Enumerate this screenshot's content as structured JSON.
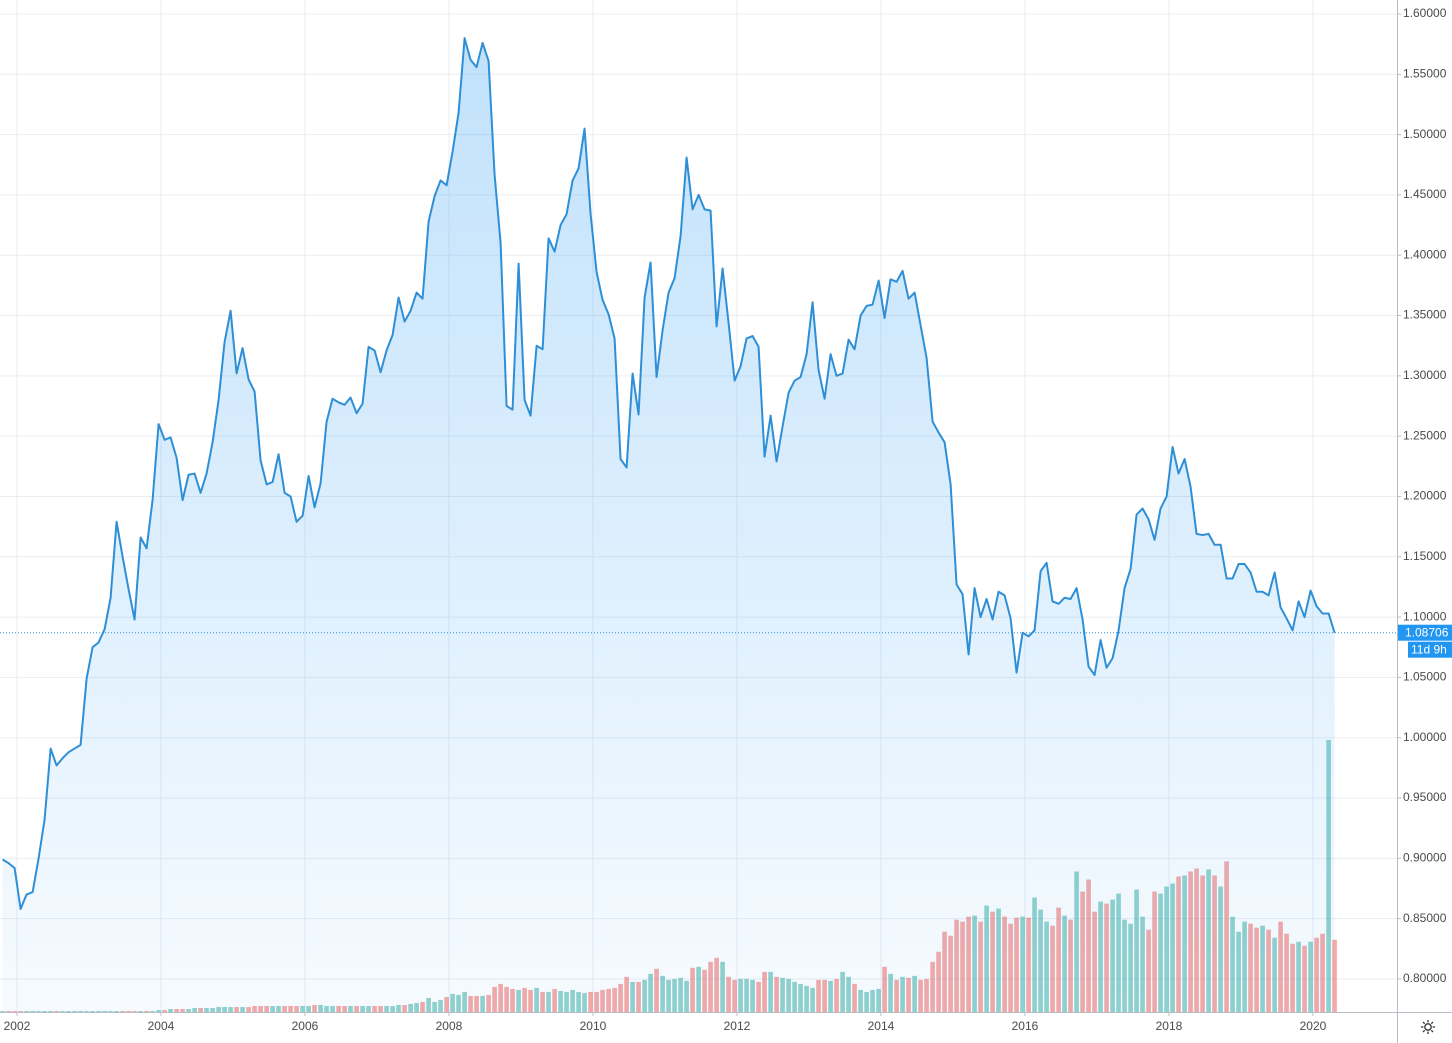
{
  "chart_data": {
    "type": "area",
    "xlim": [
      2001.764,
      2021.167
    ],
    "ylim": [
      0.7726,
      1.6116
    ],
    "xticks": [
      2002,
      2004,
      2006,
      2008,
      2010,
      2012,
      2014,
      2016,
      2018,
      2020
    ],
    "yticks": [
      {
        "value": 0.8,
        "label": "0.80000"
      },
      {
        "value": 0.85,
        "label": "0.85000"
      },
      {
        "value": 0.9,
        "label": "0.90000"
      },
      {
        "value": 0.95,
        "label": "0.95000"
      },
      {
        "value": 1.0,
        "label": "1.00000"
      },
      {
        "value": 1.05,
        "label": "1.05000"
      },
      {
        "value": 1.1,
        "label": "1.10000"
      },
      {
        "value": 1.15,
        "label": "1.15000"
      },
      {
        "value": 1.2,
        "label": "1.20000"
      },
      {
        "value": 1.25,
        "label": "1.25000"
      },
      {
        "value": 1.3,
        "label": "1.30000"
      },
      {
        "value": 1.35,
        "label": "1.35000"
      },
      {
        "value": 1.4,
        "label": "1.40000"
      },
      {
        "value": 1.45,
        "label": "1.45000"
      },
      {
        "value": 1.5,
        "label": "1.50000"
      },
      {
        "value": 1.55,
        "label": "1.55000"
      },
      {
        "value": 1.6,
        "label": "1.60000"
      }
    ],
    "grid": true,
    "countdown": "11d 9h",
    "x": [
      2001.8,
      2001.883,
      2001.967,
      2002.05,
      2002.133,
      2002.217,
      2002.3,
      2002.383,
      2002.467,
      2002.55,
      2002.633,
      2002.717,
      2002.8,
      2002.883,
      2002.967,
      2003.05,
      2003.133,
      2003.217,
      2003.3,
      2003.383,
      2003.467,
      2003.55,
      2003.633,
      2003.717,
      2003.8,
      2003.883,
      2003.967,
      2004.05,
      2004.133,
      2004.217,
      2004.3,
      2004.383,
      2004.467,
      2004.55,
      2004.633,
      2004.717,
      2004.8,
      2004.883,
      2004.967,
      2005.05,
      2005.133,
      2005.217,
      2005.3,
      2005.383,
      2005.467,
      2005.55,
      2005.633,
      2005.717,
      2005.8,
      2005.883,
      2005.967,
      2006.05,
      2006.133,
      2006.217,
      2006.3,
      2006.383,
      2006.467,
      2006.55,
      2006.633,
      2006.717,
      2006.8,
      2006.883,
      2006.967,
      2007.05,
      2007.133,
      2007.217,
      2007.3,
      2007.383,
      2007.467,
      2007.55,
      2007.633,
      2007.717,
      2007.8,
      2007.883,
      2007.967,
      2008.05,
      2008.133,
      2008.217,
      2008.3,
      2008.383,
      2008.467,
      2008.55,
      2008.633,
      2008.717,
      2008.8,
      2008.883,
      2008.967,
      2009.05,
      2009.133,
      2009.217,
      2009.3,
      2009.383,
      2009.467,
      2009.55,
      2009.633,
      2009.717,
      2009.8,
      2009.883,
      2009.967,
      2010.05,
      2010.133,
      2010.217,
      2010.3,
      2010.383,
      2010.467,
      2010.55,
      2010.633,
      2010.717,
      2010.8,
      2010.883,
      2010.967,
      2011.05,
      2011.133,
      2011.217,
      2011.3,
      2011.383,
      2011.467,
      2011.55,
      2011.633,
      2011.717,
      2011.8,
      2011.883,
      2011.967,
      2012.05,
      2012.133,
      2012.217,
      2012.3,
      2012.383,
      2012.467,
      2012.55,
      2012.633,
      2012.717,
      2012.8,
      2012.883,
      2012.967,
      2013.05,
      2013.133,
      2013.217,
      2013.3,
      2013.383,
      2013.467,
      2013.55,
      2013.633,
      2013.717,
      2013.8,
      2013.883,
      2013.967,
      2014.05,
      2014.133,
      2014.217,
      2014.3,
      2014.383,
      2014.467,
      2014.55,
      2014.633,
      2014.717,
      2014.8,
      2014.883,
      2014.967,
      2015.05,
      2015.133,
      2015.217,
      2015.3,
      2015.383,
      2015.467,
      2015.55,
      2015.633,
      2015.717,
      2015.8,
      2015.883,
      2015.967,
      2016.05,
      2016.133,
      2016.217,
      2016.3,
      2016.383,
      2016.467,
      2016.55,
      2016.633,
      2016.717,
      2016.8,
      2016.883,
      2016.967,
      2017.05,
      2017.133,
      2017.217,
      2017.3,
      2017.383,
      2017.467,
      2017.55,
      2017.633,
      2017.717,
      2017.8,
      2017.883,
      2017.967,
      2018.05,
      2018.133,
      2018.217,
      2018.3,
      2018.383,
      2018.467,
      2018.55,
      2018.633,
      2018.717,
      2018.8,
      2018.883,
      2018.967,
      2019.05,
      2019.133,
      2019.217,
      2019.3,
      2019.383,
      2019.467,
      2019.55,
      2019.633,
      2019.717,
      2019.8,
      2019.883,
      2019.967,
      2020.05,
      2020.133,
      2020.217,
      2020.3
    ],
    "series": [
      {
        "color": "#2e8fd6",
        "values": [
          0.899,
          0.896,
          0.892,
          0.858,
          0.87,
          0.872,
          0.9,
          0.932,
          0.991,
          0.977,
          0.983,
          0.988,
          0.991,
          0.994,
          1.049,
          1.075,
          1.079,
          1.09,
          1.116,
          1.179,
          1.15,
          1.123,
          1.098,
          1.166,
          1.157,
          1.197,
          1.26,
          1.247,
          1.249,
          1.232,
          1.197,
          1.218,
          1.219,
          1.203,
          1.219,
          1.245,
          1.28,
          1.328,
          1.354,
          1.302,
          1.323,
          1.297,
          1.287,
          1.23,
          1.21,
          1.212,
          1.235,
          1.203,
          1.2,
          1.179,
          1.184,
          1.217,
          1.191,
          1.211,
          1.262,
          1.281,
          1.278,
          1.276,
          1.282,
          1.269,
          1.277,
          1.324,
          1.321,
          1.303,
          1.321,
          1.334,
          1.365,
          1.345,
          1.354,
          1.369,
          1.364,
          1.428,
          1.449,
          1.462,
          1.458,
          1.486,
          1.518,
          1.58,
          1.562,
          1.556,
          1.576,
          1.561,
          1.467,
          1.41,
          1.275,
          1.272,
          1.393,
          1.28,
          1.267,
          1.325,
          1.322,
          1.414,
          1.403,
          1.425,
          1.434,
          1.462,
          1.472,
          1.505,
          1.434,
          1.386,
          1.363,
          1.351,
          1.331,
          1.231,
          1.224,
          1.302,
          1.268,
          1.365,
          1.394,
          1.299,
          1.338,
          1.369,
          1.381,
          1.416,
          1.481,
          1.438,
          1.45,
          1.438,
          1.437,
          1.341,
          1.389,
          1.344,
          1.296,
          1.308,
          1.331,
          1.333,
          1.324,
          1.233,
          1.267,
          1.229,
          1.258,
          1.286,
          1.296,
          1.299,
          1.318,
          1.361,
          1.305,
          1.281,
          1.318,
          1.3,
          1.302,
          1.33,
          1.322,
          1.35,
          1.358,
          1.359,
          1.379,
          1.348,
          1.38,
          1.378,
          1.387,
          1.364,
          1.369,
          1.342,
          1.315,
          1.262,
          1.253,
          1.245,
          1.21,
          1.127,
          1.119,
          1.069,
          1.124,
          1.1,
          1.115,
          1.098,
          1.121,
          1.118,
          1.099,
          1.054,
          1.087,
          1.084,
          1.089,
          1.138,
          1.145,
          1.113,
          1.111,
          1.116,
          1.115,
          1.124,
          1.098,
          1.059,
          1.052,
          1.081,
          1.058,
          1.066,
          1.089,
          1.124,
          1.14,
          1.185,
          1.19,
          1.181,
          1.164,
          1.19,
          1.2,
          1.241,
          1.219,
          1.231,
          1.208,
          1.169,
          1.168,
          1.169,
          1.16,
          1.16,
          1.132,
          1.132,
          1.144,
          1.144,
          1.137,
          1.121,
          1.121,
          1.118,
          1.137,
          1.108,
          1.099,
          1.089,
          1.113,
          1.1,
          1.122,
          1.109,
          1.103,
          1.103,
          1.08706
        ]
      }
    ],
    "volume": {
      "up_color": "#26a69a",
      "down_color": "#ef5350",
      "values": [
        1,
        1,
        1,
        1,
        1,
        1,
        1,
        1,
        1,
        1,
        1,
        1,
        1,
        1,
        1,
        1,
        1,
        1,
        1,
        1,
        1,
        1,
        1,
        1,
        1,
        1,
        2,
        2,
        3,
        3,
        3,
        3,
        4,
        4,
        4,
        4,
        5,
        5,
        5,
        5,
        5,
        5,
        6,
        6,
        6,
        6,
        6,
        6,
        6,
        6,
        6,
        6,
        7,
        7,
        6,
        6,
        6,
        6,
        6,
        6,
        6,
        6,
        6,
        6,
        6,
        6,
        7,
        7,
        8,
        9,
        10,
        14,
        10,
        12,
        15,
        18,
        17,
        20,
        16,
        16,
        16,
        17,
        25,
        28,
        25,
        23,
        22,
        24,
        22,
        24,
        20,
        20,
        23,
        21,
        20,
        22,
        20,
        19,
        20,
        20,
        22,
        23,
        24,
        28,
        35,
        30,
        30,
        32,
        38,
        43,
        36,
        32,
        33,
        34,
        31,
        44,
        45,
        42,
        50,
        54,
        50,
        35,
        32,
        33,
        33,
        32,
        30,
        40,
        40,
        35,
        34,
        33,
        30,
        28,
        26,
        24,
        32,
        32,
        31,
        33,
        40,
        35,
        28,
        22,
        20,
        22,
        23,
        45,
        38,
        32,
        35,
        34,
        36,
        32,
        33,
        50,
        60,
        80,
        76,
        92,
        90,
        95,
        96,
        90,
        106,
        100,
        103,
        95,
        88,
        94,
        95,
        94,
        114,
        102,
        90,
        86,
        104,
        96,
        92,
        140,
        120,
        132,
        100,
        110,
        108,
        112,
        118,
        92,
        88,
        122,
        95,
        82,
        120,
        118,
        125,
        128,
        135,
        136,
        140,
        143,
        136,
        142,
        136,
        125,
        150,
        95,
        80,
        90,
        88,
        84,
        86,
        82,
        74,
        90,
        78,
        68,
        70,
        66,
        70,
        74,
        78,
        271,
        72
      ]
    }
  }
}
